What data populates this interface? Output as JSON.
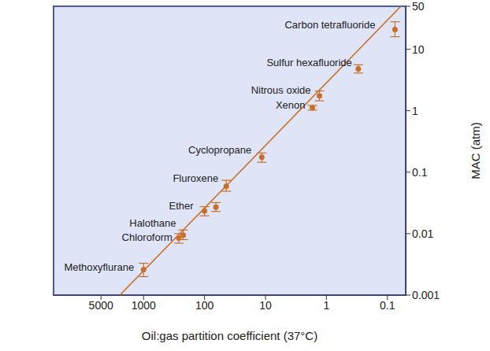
{
  "chart_data": {
    "type": "scatter",
    "xlabel": "Oil:gas partition coefficient (37°C)",
    "ylabel": "MAC (atm)",
    "log": true,
    "grid": false,
    "color": "#c8702a",
    "marker": "circle",
    "xlim": [
      30000,
      0.05
    ],
    "xticks": [
      5000,
      1000,
      100,
      10,
      1,
      0.1
    ],
    "ylim": [
      0.001,
      50
    ],
    "yticks": [
      0.001,
      0.01,
      0.1,
      1,
      10,
      50
    ],
    "labels": [
      "Methoxyflurane",
      "Chloroform",
      "Halothane",
      "Ether",
      null,
      "Fluroxene",
      "Cyclopropane",
      "Xenon",
      "Nitrous oxide",
      "Sulfur hexafluoride",
      "Carbon tetrafluoride"
    ],
    "x": [
      1000,
      265,
      224,
      100,
      65,
      44,
      11.5,
      1.7,
      1.3,
      0.3,
      0.075
    ],
    "values": [
      0.0026,
      0.0085,
      0.0095,
      0.0235,
      0.027,
      0.059,
      0.175,
      1.12,
      1.75,
      4.8,
      21
    ],
    "errors": [
      [
        0.0006,
        0.0007
      ],
      [
        0.0015,
        0.0015
      ],
      [
        0.0015,
        0.002
      ],
      [
        0.004,
        0.004
      ],
      [
        0.004,
        0.005
      ],
      [
        0.01,
        0.015
      ],
      [
        0.03,
        0.03
      ],
      [
        0.1,
        0.1
      ],
      [
        0.3,
        0.35
      ],
      [
        0.7,
        0.8
      ],
      [
        5,
        7
      ]
    ],
    "fit_line": {
      "x": [
        2450,
        0.06
      ],
      "values": [
        0.001,
        50
      ],
      "line_style": "solid"
    }
  }
}
